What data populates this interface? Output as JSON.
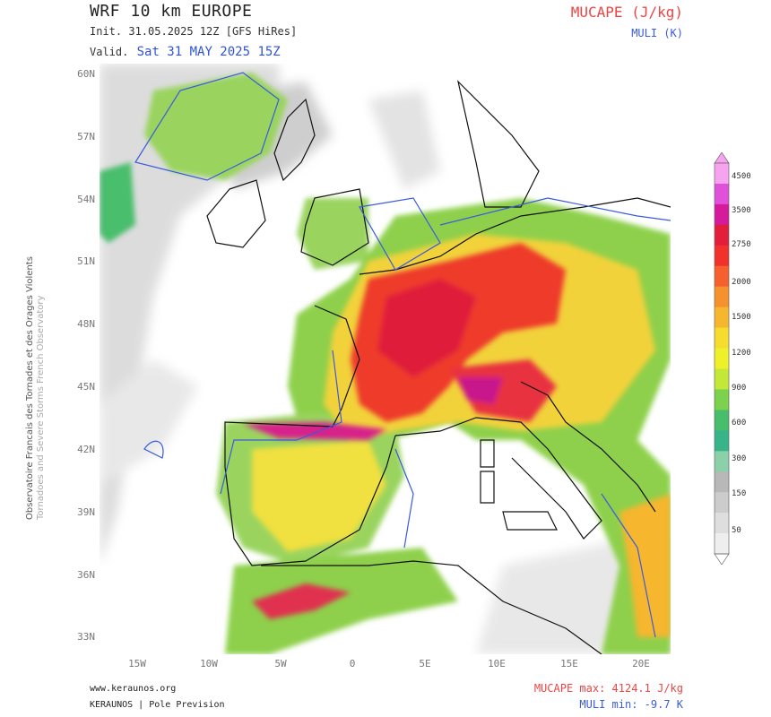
{
  "header": {
    "title": "WRF 10 km EUROPE",
    "init": "Init.  31.05.2025 12Z [GFS HiRes]",
    "valid_label": "Valid.",
    "valid_value": "Sat 31 MAY 2025 15Z",
    "variable": "MUCAPE (J/kg)",
    "overlay": "MULI (K)"
  },
  "side": {
    "french": "Observatoire Francais des Tornades et des Orages Violents",
    "english": "Tornadoes and Severe Storms French Observatory"
  },
  "axes": {
    "lat_labels": [
      "60N",
      "57N",
      "54N",
      "51N",
      "48N",
      "45N",
      "42N",
      "39N",
      "36N",
      "33N"
    ],
    "lon_labels": [
      "15W",
      "10W",
      "5W",
      "0",
      "5E",
      "10E",
      "15E",
      "20E"
    ]
  },
  "colorbar": {
    "labels": [
      "4500",
      "3500",
      "2750",
      "2000",
      "1500",
      "1200",
      "900",
      "600",
      "300",
      "150",
      "50"
    ],
    "colors": [
      "#f6a3f0",
      "#e050d8",
      "#d61a9c",
      "#e21e3a",
      "#f2322a",
      "#f6602e",
      "#f6922e",
      "#f6b62e",
      "#f6dc2e",
      "#eef02a",
      "#c4e838",
      "#7cd24c",
      "#48be6c",
      "#38b48a",
      "#8ad0a8",
      "#b8b8b8",
      "#cccccc",
      "#dedede",
      "#eeeeee"
    ]
  },
  "footer": {
    "url": "www.keraunos.org",
    "org": "KERAUNOS | Pole Prevision",
    "mucape_max": "MUCAPE max: 4124.1 J/kg",
    "muli_min": "MULI min: -9.7 K"
  }
}
